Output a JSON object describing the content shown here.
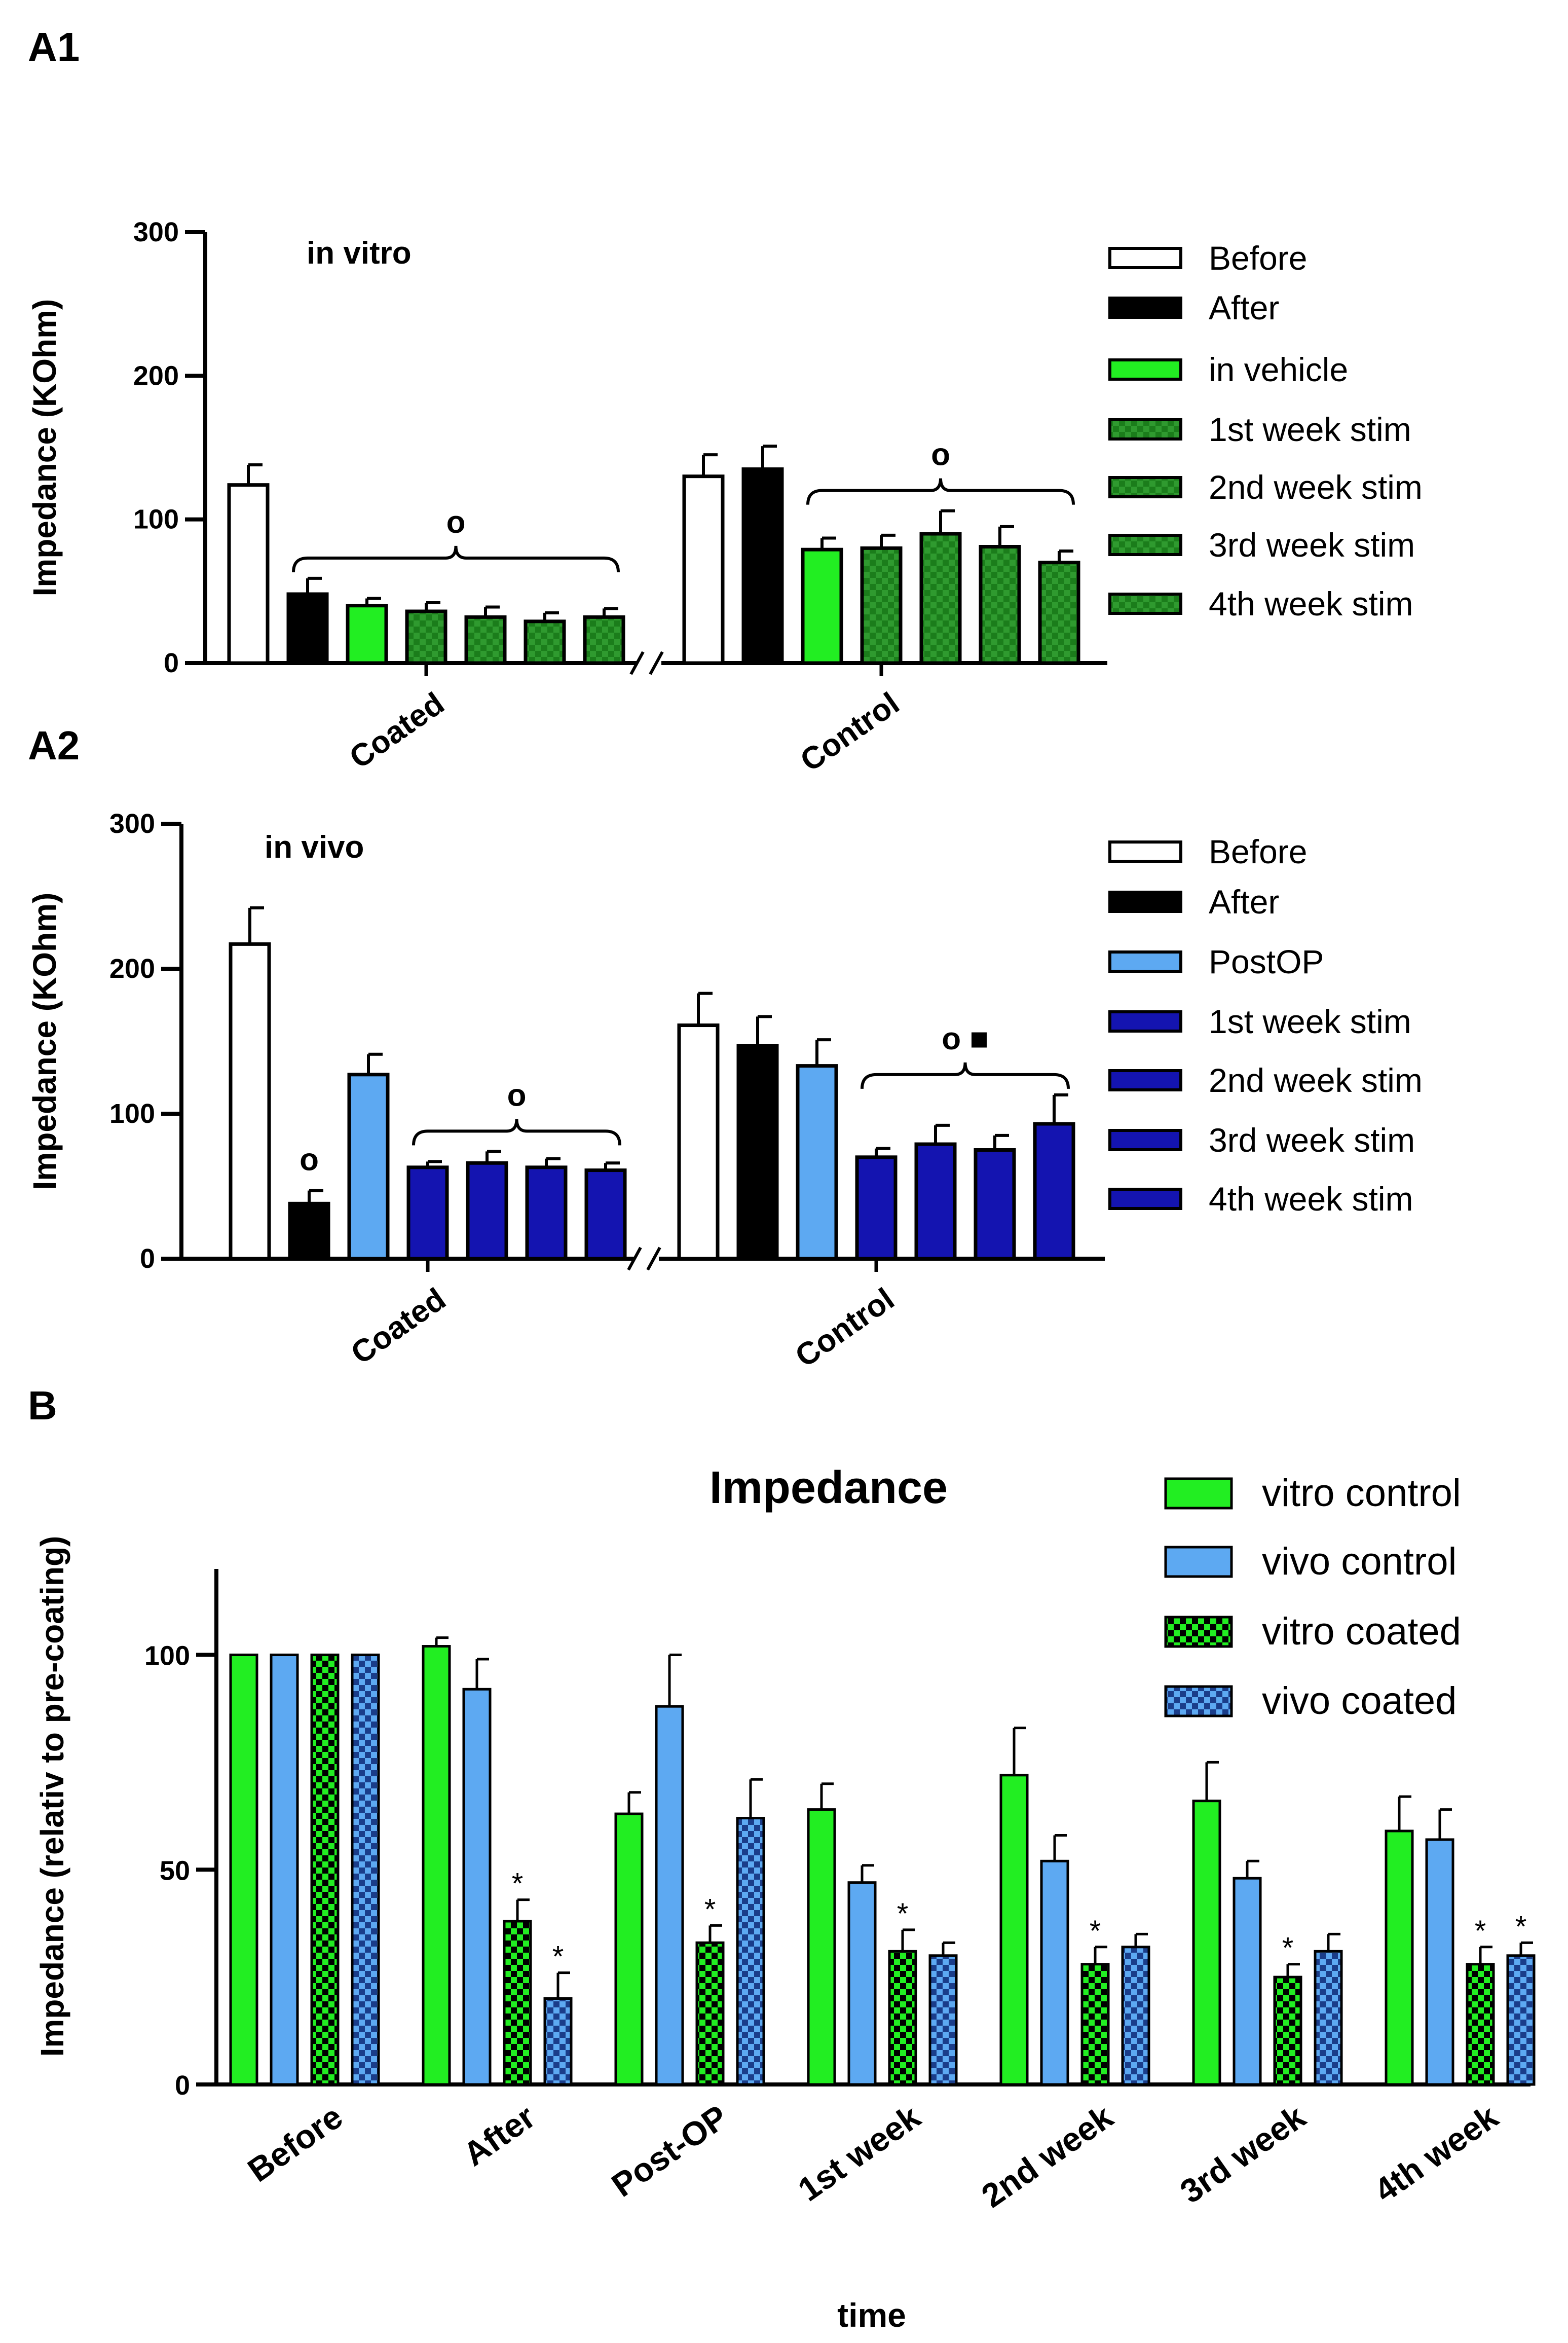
{
  "chart_data": [
    {
      "id": "A1",
      "type": "bar",
      "panel_label": "A1",
      "inset_label": "in vitro",
      "ylabel": "Impedance (KOhm)",
      "ylim": [
        0,
        300
      ],
      "yticks": [
        0,
        100,
        200,
        300
      ],
      "groups": [
        "Coated",
        "Control"
      ],
      "series": [
        {
          "name": "Before",
          "color": "#ffffff",
          "pattern": "solid",
          "values": [
            124,
            130
          ],
          "errors": [
            14,
            15
          ]
        },
        {
          "name": "After",
          "color": "#000000",
          "pattern": "solid",
          "values": [
            48,
            135
          ],
          "errors": [
            11,
            16
          ]
        },
        {
          "name": "in vehicle",
          "color": "#22ee22",
          "pattern": "solid",
          "values": [
            40,
            79
          ],
          "errors": [
            5,
            8
          ]
        },
        {
          "name": "1st week stim",
          "color": "#1b7d1b",
          "pattern": "check",
          "values": [
            36,
            80
          ],
          "errors": [
            6,
            9
          ]
        },
        {
          "name": "2nd week stim",
          "color": "#1b7d1b",
          "pattern": "check",
          "values": [
            32,
            90
          ],
          "errors": [
            7,
            16
          ]
        },
        {
          "name": "3rd week stim",
          "color": "#1b7d1b",
          "pattern": "check",
          "values": [
            29,
            81
          ],
          "errors": [
            6,
            14
          ]
        },
        {
          "name": "4th week stim",
          "color": "#1b7d1b",
          "pattern": "check",
          "values": [
            32,
            70
          ],
          "errors": [
            6,
            8
          ]
        }
      ],
      "annotations": [
        {
          "group": "Coated",
          "text": "o",
          "bracket_from_series": 1,
          "bracket_to_series": 6
        },
        {
          "group": "Control",
          "text": "o",
          "bracket_from_series": 2,
          "bracket_to_series": 6
        }
      ]
    },
    {
      "id": "A2",
      "type": "bar",
      "panel_label": "A2",
      "inset_label": "in vivo",
      "ylabel": "Impedance (KOhm)",
      "ylim": [
        0,
        300
      ],
      "yticks": [
        0,
        100,
        200,
        300
      ],
      "groups": [
        "Coated",
        "Control"
      ],
      "series": [
        {
          "name": "Before",
          "color": "#ffffff",
          "pattern": "solid",
          "values": [
            217,
            161
          ],
          "errors": [
            25,
            22
          ]
        },
        {
          "name": "After",
          "color": "#000000",
          "pattern": "solid",
          "values": [
            38,
            147
          ],
          "errors": [
            9,
            20
          ]
        },
        {
          "name": "PostOP",
          "color": "#5da9f2",
          "pattern": "solid",
          "values": [
            127,
            133
          ],
          "errors": [
            14,
            18
          ]
        },
        {
          "name": "1st week stim",
          "color": "#1414b0",
          "pattern": "solid",
          "values": [
            63,
            70
          ],
          "errors": [
            4,
            6
          ]
        },
        {
          "name": "2nd week stim",
          "color": "#1414b0",
          "pattern": "solid",
          "values": [
            66,
            79
          ],
          "errors": [
            8,
            13
          ]
        },
        {
          "name": "3rd week stim",
          "color": "#1414b0",
          "pattern": "solid",
          "values": [
            63,
            75
          ],
          "errors": [
            6,
            10
          ]
        },
        {
          "name": "4th week stim",
          "color": "#1414b0",
          "pattern": "solid",
          "values": [
            61,
            93
          ],
          "errors": [
            5,
            20
          ]
        }
      ],
      "annotations": [
        {
          "group": "Coated",
          "text": "o",
          "over_series": 1
        },
        {
          "group": "Coated",
          "text": "o",
          "bracket_from_series": 3,
          "bracket_to_series": 6
        },
        {
          "group": "Control",
          "text": "o ■",
          "bracket_from_series": 3,
          "bracket_to_series": 6
        }
      ]
    },
    {
      "id": "B",
      "type": "bar",
      "panel_label": "B",
      "title": "Impedance",
      "xlabel": "time",
      "ylabel": "Impedance (relativ to pre-coating)",
      "ylim": [
        0,
        120
      ],
      "yticks": [
        0,
        50,
        100
      ],
      "categories": [
        "Before",
        "After",
        "Post-OP",
        "1st week",
        "2nd week",
        "3rd week",
        "4th week"
      ],
      "series": [
        {
          "name": "vitro control",
          "color": "#22ee22",
          "pattern": "solid",
          "values": [
            100,
            102,
            63,
            64,
            72,
            66,
            59
          ],
          "errors": [
            0,
            2,
            5,
            6,
            11,
            9,
            8
          ]
        },
        {
          "name": "vivo control",
          "color": "#5da9f2",
          "pattern": "solid",
          "values": [
            100,
            92,
            88,
            47,
            52,
            48,
            57
          ],
          "errors": [
            0,
            7,
            12,
            4,
            6,
            4,
            7
          ]
        },
        {
          "name": "vitro coated",
          "color": "#22ee22",
          "pattern": "check",
          "values": [
            100,
            38,
            33,
            31,
            28,
            25,
            28
          ],
          "errors": [
            0,
            5,
            4,
            5,
            4,
            3,
            4
          ]
        },
        {
          "name": "vivo coated",
          "color": "#5da9f2",
          "pattern": "check",
          "values": [
            100,
            20,
            62,
            30,
            32,
            31,
            30
          ],
          "errors": [
            0,
            6,
            9,
            3,
            3,
            4,
            3
          ]
        }
      ],
      "significance_marker": "*",
      "significant": [
        {
          "series": 2,
          "category": 1
        },
        {
          "series": 3,
          "category": 1
        },
        {
          "series": 2,
          "category": 2
        },
        {
          "series": 2,
          "category": 3
        },
        {
          "series": 2,
          "category": 4
        },
        {
          "series": 2,
          "category": 5
        },
        {
          "series": 2,
          "category": 6
        },
        {
          "series": 3,
          "category": 6
        }
      ]
    }
  ]
}
